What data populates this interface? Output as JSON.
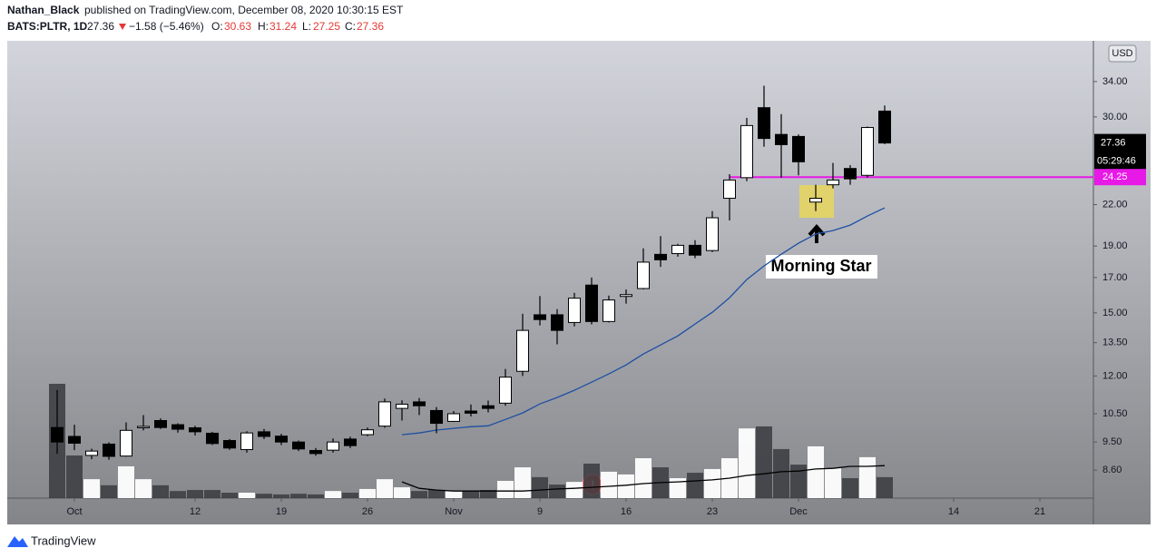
{
  "header": {
    "author": "Nathan_Black",
    "published": "published on TradingView.com, December 08, 2020 10:30:15 EST",
    "symbol": "BATS:PLTR, 1D",
    "change": "−1.58 (−5.46%)",
    "ohlc_labels": [
      "O:",
      "H:",
      "L:",
      "C:"
    ]
  },
  "footer": "TradingView",
  "chart_data": {
    "type": "candlestick",
    "currency": "USD",
    "log_scale": true,
    "ylim": [
      7.79,
      39.27
    ],
    "yticks": [
      {
        "value": 8.6,
        "label": "8.60"
      },
      {
        "value": 9.5,
        "label": "9.50"
      },
      {
        "value": 10.5,
        "label": "10.50"
      },
      {
        "value": 12,
        "label": "12.00"
      },
      {
        "value": 13.5,
        "label": "13.50"
      },
      {
        "value": 15,
        "label": "15.00"
      },
      {
        "value": 17,
        "label": "17.00"
      },
      {
        "value": 19,
        "label": "19.00"
      },
      {
        "value": 22,
        "label": "22.00"
      },
      {
        "value": 30,
        "label": "30.00"
      },
      {
        "value": 34,
        "label": "34.00"
      }
    ],
    "xticks": [
      {
        "value": 1,
        "label": "Oct"
      },
      {
        "value": 8,
        "label": "12"
      },
      {
        "value": 13,
        "label": "19"
      },
      {
        "value": 18,
        "label": "26"
      },
      {
        "value": 23,
        "label": "Nov"
      },
      {
        "value": 28,
        "label": "9"
      },
      {
        "value": 33,
        "label": "16"
      },
      {
        "value": 38,
        "label": "23"
      },
      {
        "value": 43,
        "label": "Dec"
      },
      {
        "value": 52,
        "label": "14"
      },
      {
        "value": 57,
        "label": "21"
      }
    ],
    "open": [
      10.0,
      9.69,
      9.06,
      9.43,
      9.04,
      10.0,
      10.25,
      10.1,
      9.99,
      9.8,
      9.55,
      9.25,
      9.85,
      9.7,
      9.5,
      9.22,
      9.23,
      9.6,
      9.75,
      10.05,
      10.7,
      10.95,
      10.62,
      10.22,
      10.6,
      10.8,
      10.9,
      12.2,
      14.9,
      14.9,
      14.5,
      16.55,
      14.55,
      15.9,
      16.35,
      18.45,
      18.5,
      19.05,
      18.7,
      22.5,
      24.2,
      31.0,
      28.2,
      28.0,
      22.2,
      23.6,
      25.0,
      24.4,
      30.63
    ],
    "high": [
      11.42,
      10.1,
      9.28,
      9.49,
      10.18,
      10.45,
      10.33,
      10.15,
      10.06,
      9.85,
      9.6,
      9.87,
      9.95,
      9.78,
      9.55,
      9.3,
      9.62,
      9.68,
      10.0,
      11.08,
      11.01,
      11.1,
      10.75,
      10.6,
      10.85,
      11.0,
      12.3,
      14.95,
      15.92,
      15.2,
      16.1,
      17.0,
      15.95,
      16.3,
      18.85,
      19.68,
      19.15,
      19.4,
      21.5,
      24.5,
      29.9,
      33.5,
      30.3,
      28.2,
      23.6,
      25.5,
      25.3,
      29.0,
      31.24
    ],
    "low": [
      9.11,
      9.23,
      8.94,
      8.92,
      9.02,
      9.9,
      9.95,
      9.82,
      9.72,
      9.4,
      9.24,
      9.15,
      9.6,
      9.4,
      9.2,
      9.05,
      9.15,
      9.3,
      9.7,
      9.99,
      10.25,
      10.45,
      9.8,
      10.2,
      10.4,
      10.55,
      10.8,
      12.0,
      14.35,
      13.42,
      14.3,
      14.4,
      14.5,
      15.5,
      16.3,
      17.65,
      18.3,
      18.2,
      18.6,
      20.8,
      23.9,
      27.0,
      24.2,
      24.4,
      21.5,
      23.3,
      23.6,
      24.2,
      27.25
    ],
    "close": [
      9.5,
      9.46,
      9.2,
      9.03,
      9.9,
      10.04,
      10.0,
      9.94,
      9.85,
      9.45,
      9.3,
      9.81,
      9.69,
      9.5,
      9.27,
      9.12,
      9.5,
      9.38,
      9.92,
      10.95,
      10.86,
      10.8,
      10.15,
      10.5,
      10.52,
      10.7,
      11.95,
      14.1,
      14.65,
      14.1,
      15.8,
      14.55,
      15.7,
      16.0,
      17.95,
      18.1,
      19.05,
      18.4,
      21.0,
      24.0,
      29.1,
      27.8,
      27.2,
      25.6,
      22.5,
      24.0,
      24.1,
      28.9,
      27.36
    ],
    "volume": [
      338,
      126,
      56,
      38,
      94,
      56,
      38,
      21,
      24,
      24,
      16,
      16,
      13,
      11,
      13,
      11,
      21,
      16,
      27,
      56,
      32,
      21,
      24,
      21,
      21,
      24,
      51,
      91,
      62,
      40,
      48,
      102,
      78,
      70,
      118,
      91,
      59,
      75,
      86,
      118,
      206,
      212,
      145,
      99,
      153,
      88,
      59,
      121,
      62
    ],
    "up_color": "#ffffff",
    "down_color": "#000000",
    "volume_up_color": "#ffffff",
    "volume_down_color": "#3a3b3f",
    "ma": {
      "color": "#1e4fa3",
      "values": [
        null,
        null,
        null,
        null,
        null,
        null,
        null,
        null,
        null,
        null,
        null,
        null,
        null,
        null,
        null,
        null,
        null,
        null,
        null,
        null,
        9.75,
        9.81,
        9.91,
        9.97,
        10.03,
        10.06,
        10.29,
        10.53,
        10.87,
        11.12,
        11.41,
        11.74,
        12.09,
        12.48,
        12.97,
        13.39,
        13.83,
        14.42,
        15.03,
        15.83,
        16.88,
        17.71,
        18.46,
        19.19,
        19.82,
        20.07,
        20.46,
        21.13,
        21.75
      ]
    },
    "volume_ma": {
      "color": "#000000",
      "values": [
        null,
        null,
        null,
        null,
        null,
        null,
        null,
        null,
        null,
        null,
        null,
        null,
        null,
        null,
        null,
        null,
        null,
        null,
        null,
        null,
        48,
        29,
        24,
        21,
        21,
        21,
        21,
        21,
        24,
        27,
        29,
        32,
        35,
        38,
        43,
        46,
        48,
        51,
        54,
        59,
        67,
        72,
        78,
        80,
        86,
        88,
        94,
        94,
        96
      ]
    },
    "hline": {
      "value": 24.25,
      "label": "24.25",
      "color": "#e619e6"
    },
    "countdown": "05:29:46",
    "annotation": "Morning Star"
  }
}
